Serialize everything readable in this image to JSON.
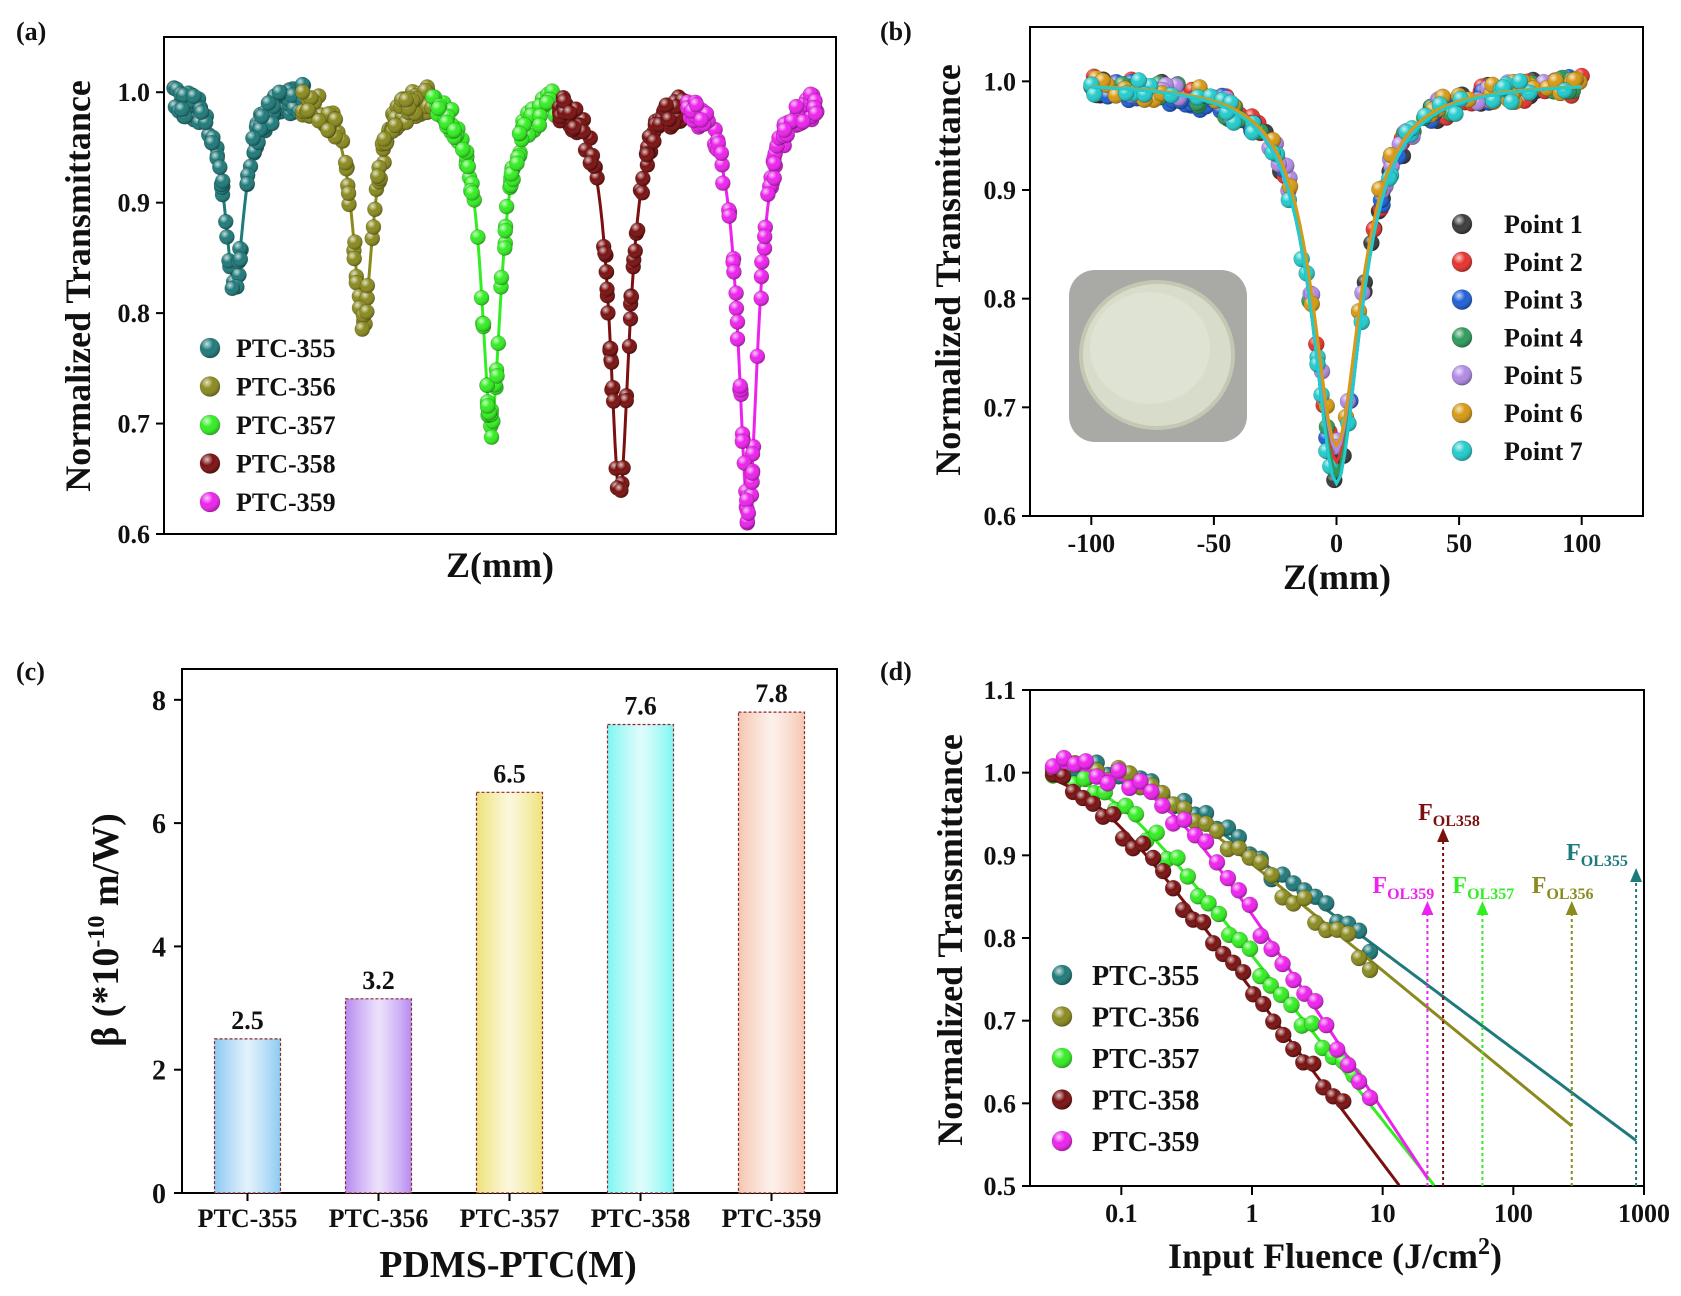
{
  "chart_data": [
    {
      "panel": "(a)",
      "type": "scatter",
      "xlabel": "Z(mm)",
      "ylabel": "Normalized Transmittance",
      "ylim": [
        0.6,
        1.05
      ],
      "yticks": [
        "0.6",
        "0.7",
        "0.8",
        "0.9",
        "1.0"
      ],
      "legend_position": "bottom-left",
      "series": [
        {
          "name": "PTC-355",
          "color": "#1f7a7a",
          "min": 0.825
        },
        {
          "name": "PTC-356",
          "color": "#8a8a1e",
          "min": 0.79
        },
        {
          "name": "PTC-357",
          "color": "#33ee22",
          "min": 0.7
        },
        {
          "name": "PTC-358",
          "color": "#7a1010",
          "min": 0.635
        },
        {
          "name": "PTC-359",
          "color": "#ee22ee",
          "min": 0.62
        }
      ]
    },
    {
      "panel": "(b)",
      "type": "scatter",
      "xlabel": "Z(mm)",
      "ylabel": "Normalized Transmittance",
      "xlim": [
        -125,
        125
      ],
      "ylim": [
        0.6,
        1.05
      ],
      "xticks": [
        "-100",
        "-50",
        "0",
        "50",
        "100"
      ],
      "yticks": [
        "0.6",
        "0.7",
        "0.8",
        "0.9",
        "1.0"
      ],
      "legend_position": "right",
      "inset": "photo of circular PDMS-PTC sample",
      "series": [
        {
          "name": "Point 1",
          "color": "#3a3a3a",
          "min": 0.64
        },
        {
          "name": "Point 2",
          "color": "#e8322d",
          "min": 0.65
        },
        {
          "name": "Point 3",
          "color": "#1f5fd6",
          "min": 0.63
        },
        {
          "name": "Point 4",
          "color": "#2e9b5a",
          "min": 0.64
        },
        {
          "name": "Point 5",
          "color": "#b08ae6",
          "min": 0.66
        },
        {
          "name": "Point 6",
          "color": "#d69a14",
          "min": 0.665
        },
        {
          "name": "Point 7",
          "color": "#22cccc",
          "min": 0.63
        }
      ]
    },
    {
      "panel": "(c)",
      "type": "bar",
      "xlabel": "PDMS-PTC(M)",
      "ylabel_main": "β (*10",
      "ylabel_sup": "-10",
      "ylabel_unit": " m/W)",
      "ylim": [
        0,
        8.5
      ],
      "yticks": [
        "0",
        "2",
        "4",
        "6",
        "8"
      ],
      "categories": [
        "PTC-355",
        "PTC-356",
        "PTC-357",
        "PTC-358",
        "PTC-359"
      ],
      "values": [
        2.5,
        3.15,
        6.5,
        7.6,
        7.8
      ],
      "value_labels": [
        "2.5",
        "3.2",
        "6.5",
        "7.6",
        "7.8"
      ],
      "colors": [
        "#8ccaf2",
        "#b68af0",
        "#eee27a",
        "#7ef6f2",
        "#f6c6b2"
      ]
    },
    {
      "panel": "(d)",
      "type": "scatter",
      "xscale": "log",
      "xlabel_main": "Input Fluence (J/cm",
      "xlabel_sup": "2",
      "xlabel_end": ")",
      "ylabel": "Normalized Transmittance",
      "xlim": [
        0.02,
        1000
      ],
      "ylim": [
        0.5,
        1.1
      ],
      "xticks": [
        "0.1",
        "1",
        "10",
        "100",
        "1000"
      ],
      "yticks": [
        "0.5",
        "0.6",
        "0.7",
        "0.8",
        "0.9",
        "1.0",
        "1.1"
      ],
      "legend_position": "bottom-left",
      "series": [
        {
          "name": "PTC-355",
          "color": "#1f7a7a",
          "threshold": 870,
          "threshold_label_main": "F",
          "threshold_label_sub": "OL355"
        },
        {
          "name": "PTC-356",
          "color": "#8a8a1e",
          "threshold": 280,
          "threshold_label_main": "F",
          "threshold_label_sub": "OL356"
        },
        {
          "name": "PTC-357",
          "color": "#33ee22",
          "threshold": 58,
          "threshold_label_main": "F",
          "threshold_label_sub": "OL357"
        },
        {
          "name": "PTC-358",
          "color": "#7a1010",
          "threshold": 29,
          "threshold_label_main": "F",
          "threshold_label_sub": "OL358"
        },
        {
          "name": "PTC-359",
          "color": "#ee22ee",
          "threshold": 22,
          "threshold_label_main": "F",
          "threshold_label_sub": "OL359"
        }
      ]
    }
  ]
}
